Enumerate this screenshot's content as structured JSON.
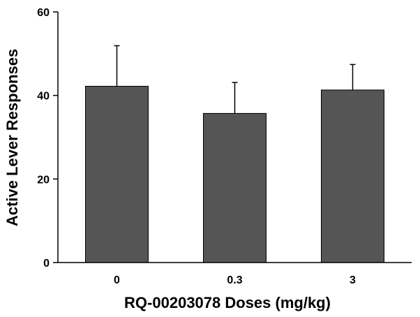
{
  "chart_data": {
    "type": "bar",
    "title": "",
    "xlabel": "RQ-00203078 Doses (mg/kg)",
    "ylabel": "Active Lever Responses",
    "categories": [
      "0",
      "0.3",
      "3"
    ],
    "values": [
      42.2,
      35.7,
      41.3
    ],
    "error": [
      9.7,
      7.4,
      6.1
    ],
    "ylim": [
      0,
      60
    ],
    "yticks": [
      "0",
      "20",
      "40",
      "60"
    ],
    "grid": false,
    "legend": "none",
    "bar_color": "#555555",
    "error_bar": "positive-only"
  }
}
